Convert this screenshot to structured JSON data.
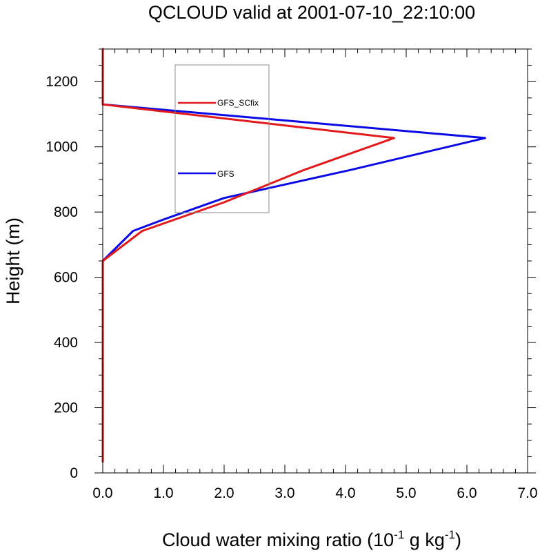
{
  "chart_data": {
    "type": "line",
    "title": "QCLOUD valid at 2001-07-10_22:10:00",
    "xlabel": {
      "prefix": "Cloud water mixing ratio (10",
      "sup1": "-1",
      "mid": " g kg",
      "sup2": "-1",
      "suffix": ")"
    },
    "ylabel": "Height (m)",
    "xlim": [
      0,
      7.0
    ],
    "ylim": [
      0,
      1300
    ],
    "x_ticks": [
      0.0,
      1.0,
      2.0,
      3.0,
      4.0,
      5.0,
      6.0,
      7.0
    ],
    "x_tick_labels": [
      "0.0",
      "1.0",
      "2.0",
      "3.0",
      "4.0",
      "5.0",
      "6.0",
      "7.0"
    ],
    "y_ticks": [
      0,
      200,
      400,
      600,
      800,
      1000,
      1200
    ],
    "y_tick_labels": [
      "0",
      "200",
      "400",
      "600",
      "800",
      "1000",
      "1200"
    ],
    "grid": false,
    "legend_position": "top-center",
    "series": [
      {
        "name": "GFS_SCfix",
        "color": "#e31a1c",
        "points": [
          [
            0,
            35
          ],
          [
            0,
            650
          ],
          [
            0.65,
            742
          ],
          [
            2.0,
            830
          ],
          [
            3.3,
            928
          ],
          [
            4.8,
            1027
          ],
          [
            0,
            1130
          ],
          [
            0,
            1300
          ]
        ]
      },
      {
        "name": "GFS",
        "color": "#0a0ae6",
        "points": [
          [
            0,
            35
          ],
          [
            0,
            650
          ],
          [
            0.5,
            742
          ],
          [
            1.0,
            777
          ],
          [
            2.0,
            843
          ],
          [
            4.1,
            930
          ],
          [
            6.3,
            1027
          ],
          [
            0,
            1130
          ],
          [
            0,
            1300
          ]
        ]
      }
    ]
  }
}
